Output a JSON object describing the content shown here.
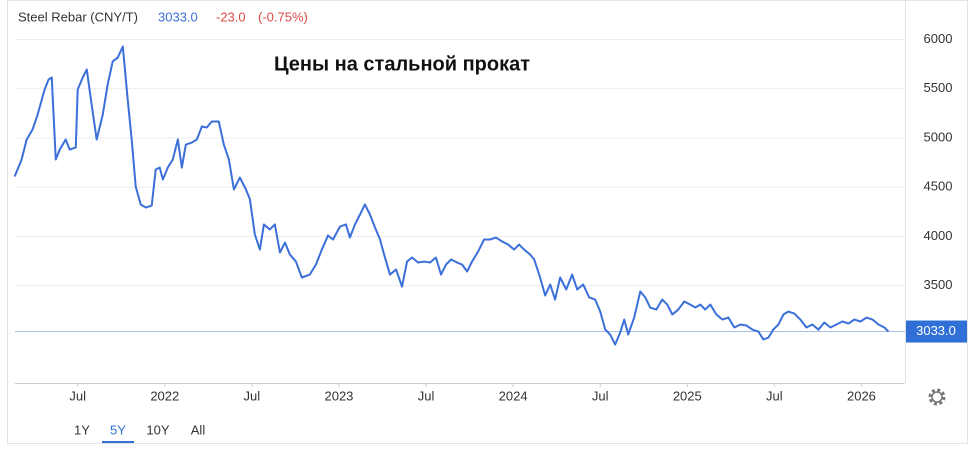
{
  "header": {
    "name": "Steel Rebar (CNY/T)",
    "change": "-23.0",
    "change_pct": "(-0.75%)"
  },
  "range_buttons": [
    "1Y",
    "5Y",
    "10Y",
    "All"
  ],
  "selected_range": 1,
  "chart_data": {
    "type": "line",
    "annotation": "Цены на стальной прокат",
    "last_value": {
      "value": 3033,
      "label": "3033.0"
    },
    "xlim": [
      2021.14,
      2026.25
    ],
    "ylim": [
      2510,
      6300
    ],
    "xticks": [
      {
        "value": 2021.5,
        "label": "Jul"
      },
      2022,
      {
        "value": 2022.5,
        "label": "Jul"
      },
      2023,
      {
        "value": 2023.5,
        "label": "Jul"
      },
      2024,
      {
        "value": 2024.5,
        "label": "Jul"
      },
      2025,
      {
        "value": 2025.5,
        "label": "Jul"
      },
      2026
    ],
    "yticks": [
      3500,
      4000,
      4500,
      5000,
      5500,
      6000
    ],
    "grid": true,
    "x": [
      2021.138,
      2021.178,
      2021.207,
      2021.241,
      2021.27,
      2021.31,
      2021.333,
      2021.351,
      2021.374,
      2021.397,
      2021.431,
      2021.454,
      2021.489,
      2021.5,
      2021.529,
      2021.552,
      2021.58,
      2021.609,
      2021.644,
      2021.672,
      2021.701,
      2021.73,
      2021.759,
      2021.787,
      2021.81,
      2021.833,
      2021.862,
      2021.891,
      2021.925,
      2021.948,
      2021.971,
      2021.989,
      2022.017,
      2022.046,
      2022.075,
      2022.098,
      2022.121,
      2022.155,
      2022.184,
      2022.213,
      2022.241,
      2022.27,
      2022.31,
      2022.339,
      2022.368,
      2022.397,
      2022.431,
      2022.466,
      2022.489,
      2022.517,
      2022.546,
      2022.569,
      2022.603,
      2022.632,
      2022.661,
      2022.69,
      2022.718,
      2022.753,
      2022.787,
      2022.833,
      2022.868,
      2022.902,
      2022.937,
      2022.966,
      2023.006,
      2023.04,
      2023.063,
      2023.092,
      2023.121,
      2023.149,
      2023.178,
      2023.207,
      2023.236,
      2023.259,
      2023.293,
      2023.328,
      2023.362,
      2023.391,
      2023.42,
      2023.454,
      2023.489,
      2023.523,
      2023.557,
      2023.586,
      2023.615,
      2023.644,
      2023.678,
      2023.707,
      2023.736,
      2023.764,
      2023.799,
      2023.833,
      2023.868,
      2023.902,
      2023.937,
      2023.971,
      2024.006,
      2024.034,
      2024.063,
      2024.098,
      2024.121,
      2024.155,
      2024.184,
      2024.213,
      2024.241,
      2024.27,
      2024.305,
      2024.339,
      2024.368,
      2024.402,
      2024.437,
      2024.471,
      2024.5,
      2024.529,
      2024.557,
      2024.586,
      2024.615,
      2024.638,
      2024.661,
      2024.695,
      2024.73,
      2024.759,
      2024.787,
      2024.822,
      2024.856,
      2024.885,
      2024.914,
      2024.948,
      2024.983,
      2025.017,
      2025.046,
      2025.075,
      2025.103,
      2025.132,
      2025.167,
      2025.201,
      2025.236,
      2025.27,
      2025.305,
      2025.339,
      2025.374,
      2025.408,
      2025.437,
      2025.466,
      2025.494,
      2025.523,
      2025.552,
      2025.58,
      2025.615,
      2025.649,
      2025.684,
      2025.718,
      2025.753,
      2025.787,
      2025.822,
      2025.856,
      2025.891,
      2025.925,
      2025.96,
      2025.994,
      2026.029,
      2026.063,
      2026.098,
      2026.132,
      2026.155
    ],
    "series": [
      {
        "name": "Steel Rebar",
        "color": "#3b6fd9",
        "values": [
          4608,
          4781,
          4984,
          5086,
          5238,
          5492,
          5594,
          5614,
          4781,
          4882,
          4984,
          4882,
          4903,
          5492,
          5614,
          5695,
          5340,
          4984,
          5238,
          5543,
          5777,
          5817,
          5929,
          5391,
          4984,
          4506,
          4324,
          4293,
          4313,
          4679,
          4699,
          4578,
          4699,
          4781,
          4984,
          4699,
          4933,
          4953,
          4984,
          5116,
          5106,
          5167,
          5167,
          4933,
          4781,
          4476,
          4598,
          4476,
          4374,
          4019,
          3866,
          4121,
          4070,
          4121,
          3836,
          3937,
          3816,
          3744,
          3582,
          3612,
          3714,
          3866,
          4009,
          3968,
          4100,
          4121,
          3988,
          4121,
          4222,
          4324,
          4222,
          4090,
          3968,
          3816,
          3612,
          3663,
          3490,
          3744,
          3785,
          3734,
          3744,
          3734,
          3785,
          3612,
          3714,
          3765,
          3734,
          3714,
          3643,
          3744,
          3846,
          3968,
          3968,
          3988,
          3948,
          3917,
          3866,
          3917,
          3866,
          3816,
          3765,
          3582,
          3399,
          3511,
          3358,
          3582,
          3460,
          3612,
          3460,
          3511,
          3379,
          3358,
          3236,
          3053,
          3003,
          2901,
          3023,
          3155,
          3003,
          3175,
          3440,
          3379,
          3277,
          3256,
          3358,
          3307,
          3206,
          3256,
          3338,
          3307,
          3277,
          3307,
          3256,
          3307,
          3206,
          3155,
          3175,
          3074,
          3104,
          3094,
          3053,
          3033,
          2952,
          2972,
          3053,
          3104,
          3206,
          3236,
          3216,
          3155,
          3074,
          3104,
          3053,
          3125,
          3074,
          3104,
          3135,
          3114,
          3155,
          3135,
          3175,
          3155,
          3104,
          3074,
          3033
        ]
      }
    ]
  }
}
